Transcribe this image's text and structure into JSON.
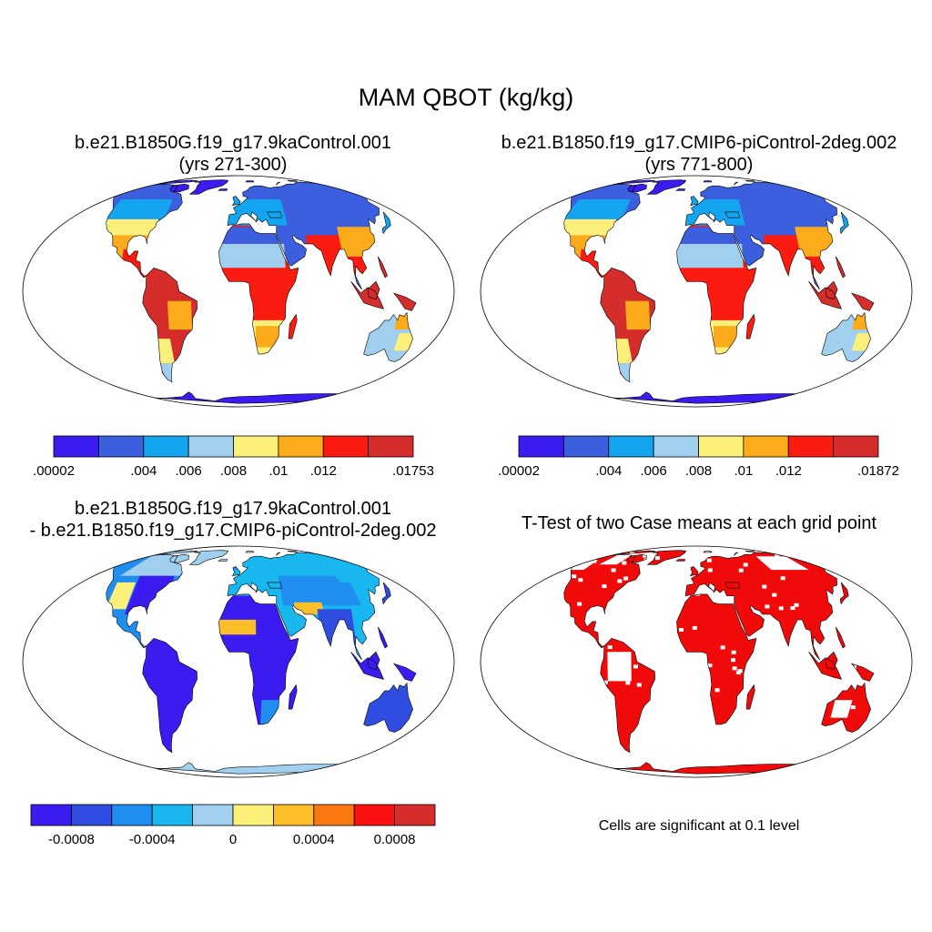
{
  "figure": {
    "title": "MAM QBOT (kg/kg)"
  },
  "colors": {
    "abs": [
      "#3a1cf0",
      "#3c5fe0",
      "#13a5f0",
      "#a0cfef",
      "#fdf07a",
      "#fcac1a",
      "#fb1b10",
      "#d52c2c"
    ],
    "diff": [
      "#3a1cf0",
      "#2f4de0",
      "#1f8ef0",
      "#18b7f0",
      "#a0cfef",
      "#fdf07a",
      "#fcbf2a",
      "#fb7810",
      "#fb1010",
      "#d52c2c"
    ],
    "sig": "#f00a0a",
    "ocean": "#ffffff",
    "coast": "#000000"
  },
  "panels": [
    {
      "id": "case1",
      "title_line1": "b.e21.B1850G.f19_g17.9kaControl.001",
      "title_line2": "(yrs 271-300)",
      "colorbar": {
        "labels": [
          ".00002",
          ".004",
          ".006",
          ".008",
          ".01",
          ".012",
          ".01753"
        ]
      }
    },
    {
      "id": "case2",
      "title_line1": "b.e21.B1850.f19_g17.CMIP6-piControl-2deg.002",
      "title_line2": "(yrs 771-800)",
      "colorbar": {
        "labels": [
          ".00002",
          ".004",
          ".006",
          ".008",
          ".01",
          ".012",
          ".01872"
        ]
      }
    },
    {
      "id": "diff",
      "title_line1": "b.e21.B1850G.f19_g17.9kaControl.001",
      "title_line2": "- b.e21.B1850.f19_g17.CMIP6-piControl-2deg.002",
      "colorbar": {
        "labels": [
          "-0.0008",
          "-0.0004",
          "0",
          "0.0004",
          "0.0008"
        ]
      }
    },
    {
      "id": "ttest",
      "title_line1": "T-Test of two Case means at each grid point",
      "note": "Cells are significant at 0.1 level"
    }
  ]
}
